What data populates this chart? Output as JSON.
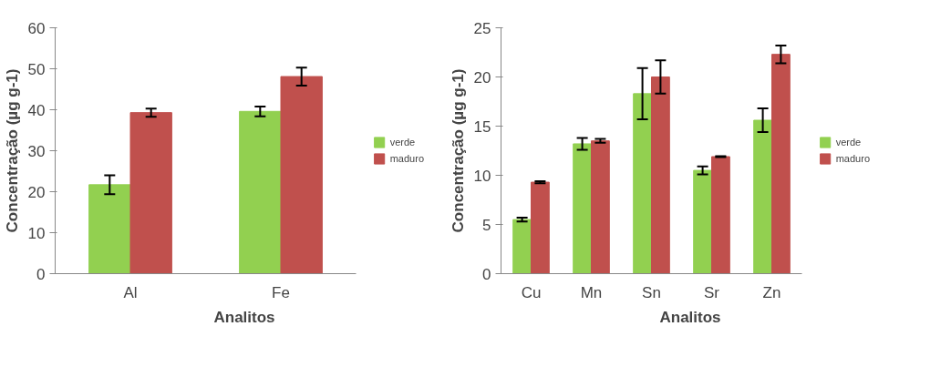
{
  "chart_data": [
    {
      "type": "bar",
      "xlabel": "Analitos",
      "ylabel": "Concentração (µg g-1)",
      "categories": [
        "Al",
        "Fe"
      ],
      "ylim": [
        0,
        60
      ],
      "yticks": [
        0,
        10,
        20,
        30,
        40,
        50,
        60
      ],
      "grid": false,
      "legend": "right",
      "series": [
        {
          "name": "verde",
          "color": "#92d050",
          "values": [
            21.7,
            39.6
          ],
          "errors": [
            2.3,
            1.2
          ]
        },
        {
          "name": "maduro",
          "color": "#c0504d",
          "values": [
            39.3,
            48.1
          ],
          "errors": [
            1.0,
            2.2
          ]
        }
      ]
    },
    {
      "type": "bar",
      "xlabel": "Analitos",
      "ylabel": "Concentração (µg g-1)",
      "categories": [
        "Cu",
        "Mn",
        "Sn",
        "Sr",
        "Zn"
      ],
      "ylim": [
        0,
        25
      ],
      "yticks": [
        0,
        5,
        10,
        15,
        20,
        25
      ],
      "grid": false,
      "legend": "right",
      "series": [
        {
          "name": "verde",
          "color": "#92d050",
          "values": [
            5.5,
            13.2,
            18.3,
            10.5,
            15.6
          ],
          "errors": [
            0.2,
            0.6,
            2.6,
            0.4,
            1.2
          ]
        },
        {
          "name": "maduro",
          "color": "#c0504d",
          "values": [
            9.3,
            13.5,
            20.0,
            11.9,
            22.3
          ],
          "errors": [
            0.1,
            0.2,
            1.7,
            0.05,
            0.9
          ]
        }
      ]
    }
  ]
}
